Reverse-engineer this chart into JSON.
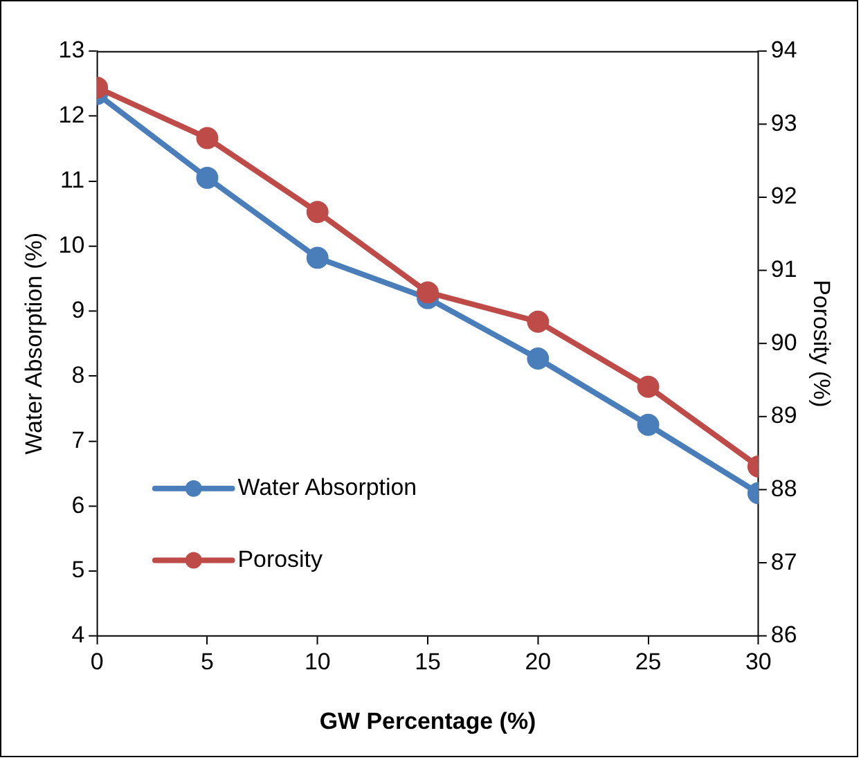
{
  "chart_data": {
    "type": "line",
    "xlabel": "GW Percentage (%)",
    "ylabel": "Water Absorption (%)",
    "y2label": "Porosity (%)",
    "x": [
      0,
      5,
      10,
      15,
      20,
      25,
      30
    ],
    "series": [
      {
        "name": "Water Absorption",
        "color": "#4a7ebb",
        "values": [
          12.34,
          11.05,
          9.82,
          9.2,
          8.27,
          7.25,
          6.2
        ]
      },
      {
        "name": "Porosity",
        "color": "#be4b48",
        "axis": "y2",
        "values": [
          93.5,
          92.81,
          91.8,
          90.7,
          90.3,
          89.41,
          88.32
        ]
      }
    ],
    "xlim": [
      0,
      30
    ],
    "xticks": [
      0,
      5,
      10,
      15,
      20,
      25,
      30
    ],
    "ylim": [
      4,
      13
    ],
    "yticks": [
      4,
      5,
      6,
      7,
      8,
      9,
      10,
      11,
      12,
      13
    ],
    "y2lim": [
      86,
      94
    ],
    "y2ticks": [
      86,
      87,
      88,
      89,
      90,
      91,
      92,
      93,
      94
    ],
    "grid": false,
    "legend": "bottom left",
    "marker": "circle",
    "line_style": "solid"
  }
}
